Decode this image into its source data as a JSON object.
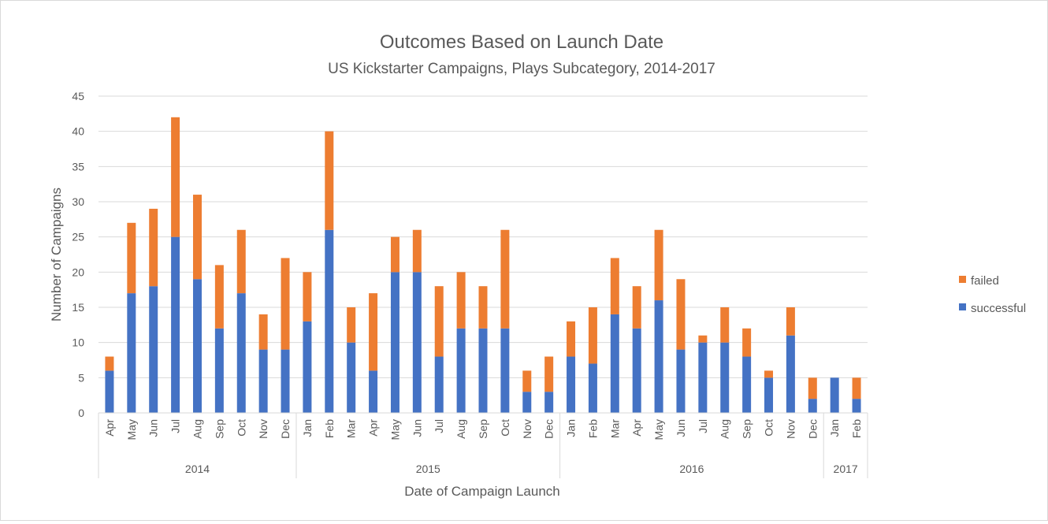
{
  "chart_data": {
    "type": "bar",
    "stacked": true,
    "title": "Outcomes Based on Launch Date",
    "subtitle": "US Kickstarter Campaigns, Plays Subcategory, 2014-2017",
    "xlabel": "Date of Campaign Launch",
    "ylabel": "Number of Campaigns",
    "ylim": [
      0,
      45
    ],
    "yticks": [
      0,
      5,
      10,
      15,
      20,
      25,
      30,
      35,
      40,
      45
    ],
    "grid": true,
    "legend_position": "right",
    "categories": [
      "Apr",
      "May",
      "Jun",
      "Jul",
      "Aug",
      "Sep",
      "Oct",
      "Nov",
      "Dec",
      "Jan",
      "Feb",
      "Mar",
      "Apr",
      "May",
      "Jun",
      "Jul",
      "Aug",
      "Sep",
      "Oct",
      "Nov",
      "Dec",
      "Jan",
      "Feb",
      "Mar",
      "Apr",
      "May",
      "Jun",
      "Jul",
      "Aug",
      "Sep",
      "Oct",
      "Nov",
      "Dec",
      "Jan",
      "Feb"
    ],
    "year_groups": [
      {
        "label": "2014",
        "count": 9
      },
      {
        "label": "2015",
        "count": 12
      },
      {
        "label": "2016",
        "count": 12
      },
      {
        "label": "2017",
        "count": 2
      }
    ],
    "series": [
      {
        "name": "successful",
        "color": "#4472c4",
        "values": [
          6,
          17,
          18,
          25,
          19,
          12,
          17,
          9,
          9,
          13,
          26,
          10,
          6,
          20,
          20,
          8,
          12,
          12,
          12,
          3,
          3,
          8,
          7,
          14,
          12,
          16,
          9,
          10,
          10,
          8,
          5,
          11,
          2,
          5,
          2
        ]
      },
      {
        "name": "failed",
        "color": "#ed7d31",
        "values": [
          2,
          10,
          11,
          17,
          12,
          9,
          9,
          5,
          13,
          7,
          14,
          5,
          11,
          5,
          6,
          10,
          8,
          6,
          14,
          3,
          5,
          5,
          8,
          8,
          6,
          10,
          10,
          1,
          5,
          4,
          1,
          4,
          3,
          0,
          3
        ]
      }
    ],
    "legend_order": [
      "failed",
      "successful"
    ]
  }
}
